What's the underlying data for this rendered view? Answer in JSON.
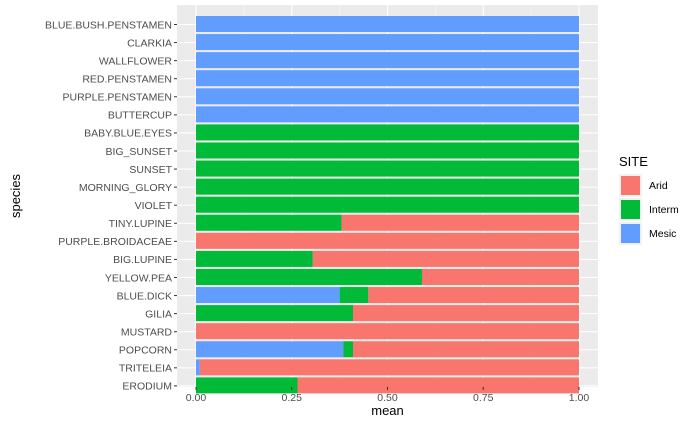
{
  "chart_data": {
    "type": "bar",
    "orientation": "horizontal",
    "stacked": true,
    "xlabel": "mean",
    "ylabel": "species",
    "xlim": [
      0,
      1
    ],
    "x_ticks": [
      "0.00",
      "0.25",
      "0.50",
      "0.75",
      "1.00"
    ],
    "grid": true,
    "legend": {
      "title": "SITE",
      "position": "right",
      "entries": [
        {
          "name": "Arid",
          "color": "#F8766D"
        },
        {
          "name": "Interm",
          "color": "#00BA38"
        },
        {
          "name": "Mesic",
          "color": "#619CFF"
        }
      ]
    },
    "categories": [
      "BLUE.BUSH.PENSTAMEN",
      "CLARKIA",
      "WALLFLOWER",
      "RED.PENSTAMEN",
      "PURPLE.PENSTAMEN",
      "BUTTERCUP",
      "BABY.BLUE.EYES",
      "BIG_SUNSET",
      "SUNSET",
      "MORNING_GLORY",
      "VIOLET",
      "TINY.LUPINE",
      "PURPLE.BROIDACEAE",
      "BIG.LUPINE",
      "YELLOW.PEA",
      "BLUE.DICK",
      "GILIA",
      "MUSTARD",
      "POPCORN",
      "TRITELEIA",
      "ERODIUM"
    ],
    "series": [
      {
        "name": "Mesic",
        "color": "#619CFF",
        "values": [
          1,
          1,
          1,
          1,
          1,
          1,
          0,
          0,
          0,
          0,
          0,
          0,
          0,
          0,
          0,
          0.375,
          0,
          0,
          0.385,
          0.01,
          0
        ]
      },
      {
        "name": "Interm",
        "color": "#00BA38",
        "values": [
          0,
          0,
          0,
          0,
          0,
          0,
          1,
          1,
          1,
          1,
          1,
          0.38,
          0,
          0.305,
          0.59,
          0.075,
          0.41,
          0,
          0.025,
          0,
          0.265
        ]
      },
      {
        "name": "Arid",
        "color": "#F8766D",
        "values": [
          0,
          0,
          0,
          0,
          0,
          0,
          0,
          0,
          0,
          0,
          0,
          0.62,
          1,
          0.695,
          0.41,
          0.55,
          0.59,
          1,
          0.59,
          0.99,
          0.735
        ]
      }
    ]
  }
}
